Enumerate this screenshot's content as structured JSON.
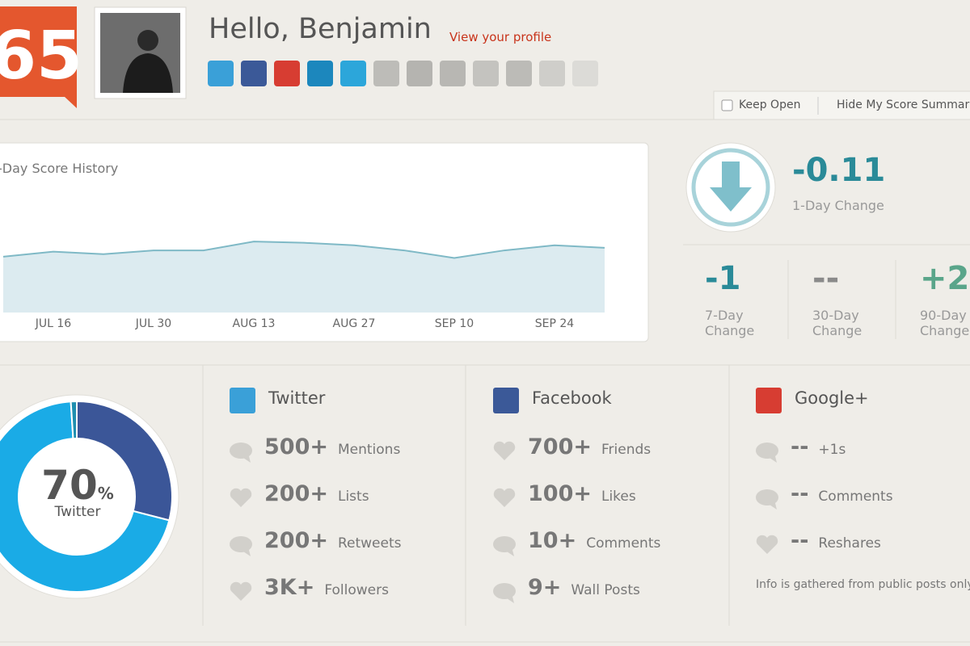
{
  "header": {
    "score": "65",
    "greeting": "Hello, Benjamin",
    "profile_link": "View your profile"
  },
  "controls": {
    "keep_open": "Keep Open",
    "hide_summary": "Hide My Score Summar"
  },
  "chart_data": [
    {
      "type": "line",
      "title": "-Day Score History",
      "categories": [
        null,
        "JUL 16",
        null,
        "JUL 30",
        null,
        "AUG 13",
        null,
        "AUG 27",
        null,
        "SEP 10",
        null,
        "SEP 24",
        null
      ],
      "values": [
        64.4,
        64.8,
        64.6,
        64.9,
        64.9,
        65.6,
        65.5,
        65.3,
        64.9,
        64.3,
        64.9,
        65.3,
        65.1
      ],
      "ylim": [
        60,
        70
      ],
      "color": "#7fb9c6",
      "fill": "#dcebf0"
    },
    {
      "type": "pie",
      "values": [
        29,
        70,
        1
      ],
      "colors": [
        "#3b5698",
        "#1aabe6",
        "#1f8fb0"
      ],
      "center_value": "70",
      "center_unit": "%",
      "center_label": "Twitter"
    }
  ],
  "changes": {
    "main": {
      "value": "-0.11",
      "label": "1-Day Change"
    },
    "others": [
      {
        "value": "-1",
        "label": "7-Day Change"
      },
      {
        "value": "--",
        "label": "30-Day Change"
      },
      {
        "value": "+2",
        "label": "90-Day Change"
      }
    ]
  },
  "networks": [
    {
      "name": "Twitter",
      "stats": [
        {
          "value": "500+",
          "label": "Mentions"
        },
        {
          "value": "200+",
          "label": "Lists"
        },
        {
          "value": "200+",
          "label": "Retweets"
        },
        {
          "value": "3K+",
          "label": "Followers"
        }
      ]
    },
    {
      "name": "Facebook",
      "stats": [
        {
          "value": "700+",
          "label": "Friends"
        },
        {
          "value": "100+",
          "label": "Likes"
        },
        {
          "value": "10+",
          "label": "Comments"
        },
        {
          "value": "9+",
          "label": "Wall Posts"
        }
      ]
    },
    {
      "name": "Google+",
      "stats": [
        {
          "value": "--",
          "label": "+1s"
        },
        {
          "value": "--",
          "label": "Comments"
        },
        {
          "value": "--",
          "label": "Reshares"
        }
      ]
    }
  ],
  "note": "Info is gathered from public posts only."
}
